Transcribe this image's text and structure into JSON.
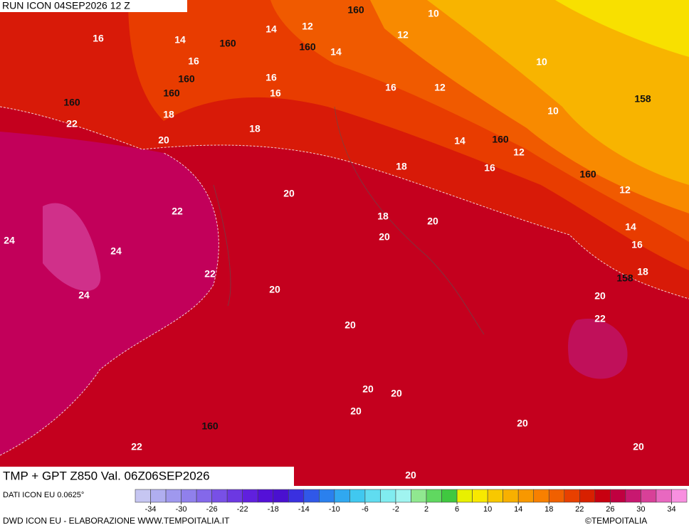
{
  "header": {
    "run": "RUN ICON 04SEP2026 12 Z",
    "title": "TMP + GPT Z850 Val. 06Z06SEP2026",
    "source": "DATI ICON EU 0.0625°",
    "credit": "DWD ICON EU - ELABORAZIONE WWW.TEMPOITALIA.IT",
    "brand": "©TEMPOITALIA"
  },
  "colorbar": {
    "range": [
      -36,
      36
    ],
    "ticks": [
      -34,
      -30,
      -26,
      -22,
      -18,
      -14,
      -10,
      -6,
      -2,
      2,
      6,
      10,
      14,
      18,
      22,
      26,
      30,
      34
    ],
    "colors": [
      "#c6c6f2",
      "#b0aef0",
      "#9f98ee",
      "#9080ec",
      "#8468ea",
      "#7850e6",
      "#6c38e2",
      "#6020de",
      "#5410d8",
      "#4a10d0",
      "#3a30e0",
      "#3058e8",
      "#2a80ee",
      "#30a8f0",
      "#40c8f0",
      "#60dcf0",
      "#80ecf0",
      "#a0f4f0",
      "#90e890",
      "#60d860",
      "#40c840",
      "#e8f000",
      "#f8e800",
      "#f8c800",
      "#f8b000",
      "#f89800",
      "#f88000",
      "#f06000",
      "#e84000",
      "#d82000",
      "#c80010",
      "#c00040",
      "#c81870",
      "#d84098",
      "#e868c0",
      "#f890e0"
    ]
  },
  "contour_labels": {
    "temperature": [
      16,
      14,
      14,
      12,
      10,
      12,
      16,
      16,
      16,
      10,
      12,
      10,
      16,
      14,
      18,
      22,
      20,
      18,
      14,
      12,
      16,
      18,
      12,
      20,
      22,
      18,
      20,
      20,
      14,
      16,
      24,
      24,
      24,
      22,
      20,
      18,
      20,
      22,
      20,
      20,
      20,
      20,
      20,
      22,
      20,
      20
    ],
    "height": [
      160,
      160,
      160,
      160,
      160,
      160,
      158,
      160,
      160,
      158,
      160
    ]
  }
}
